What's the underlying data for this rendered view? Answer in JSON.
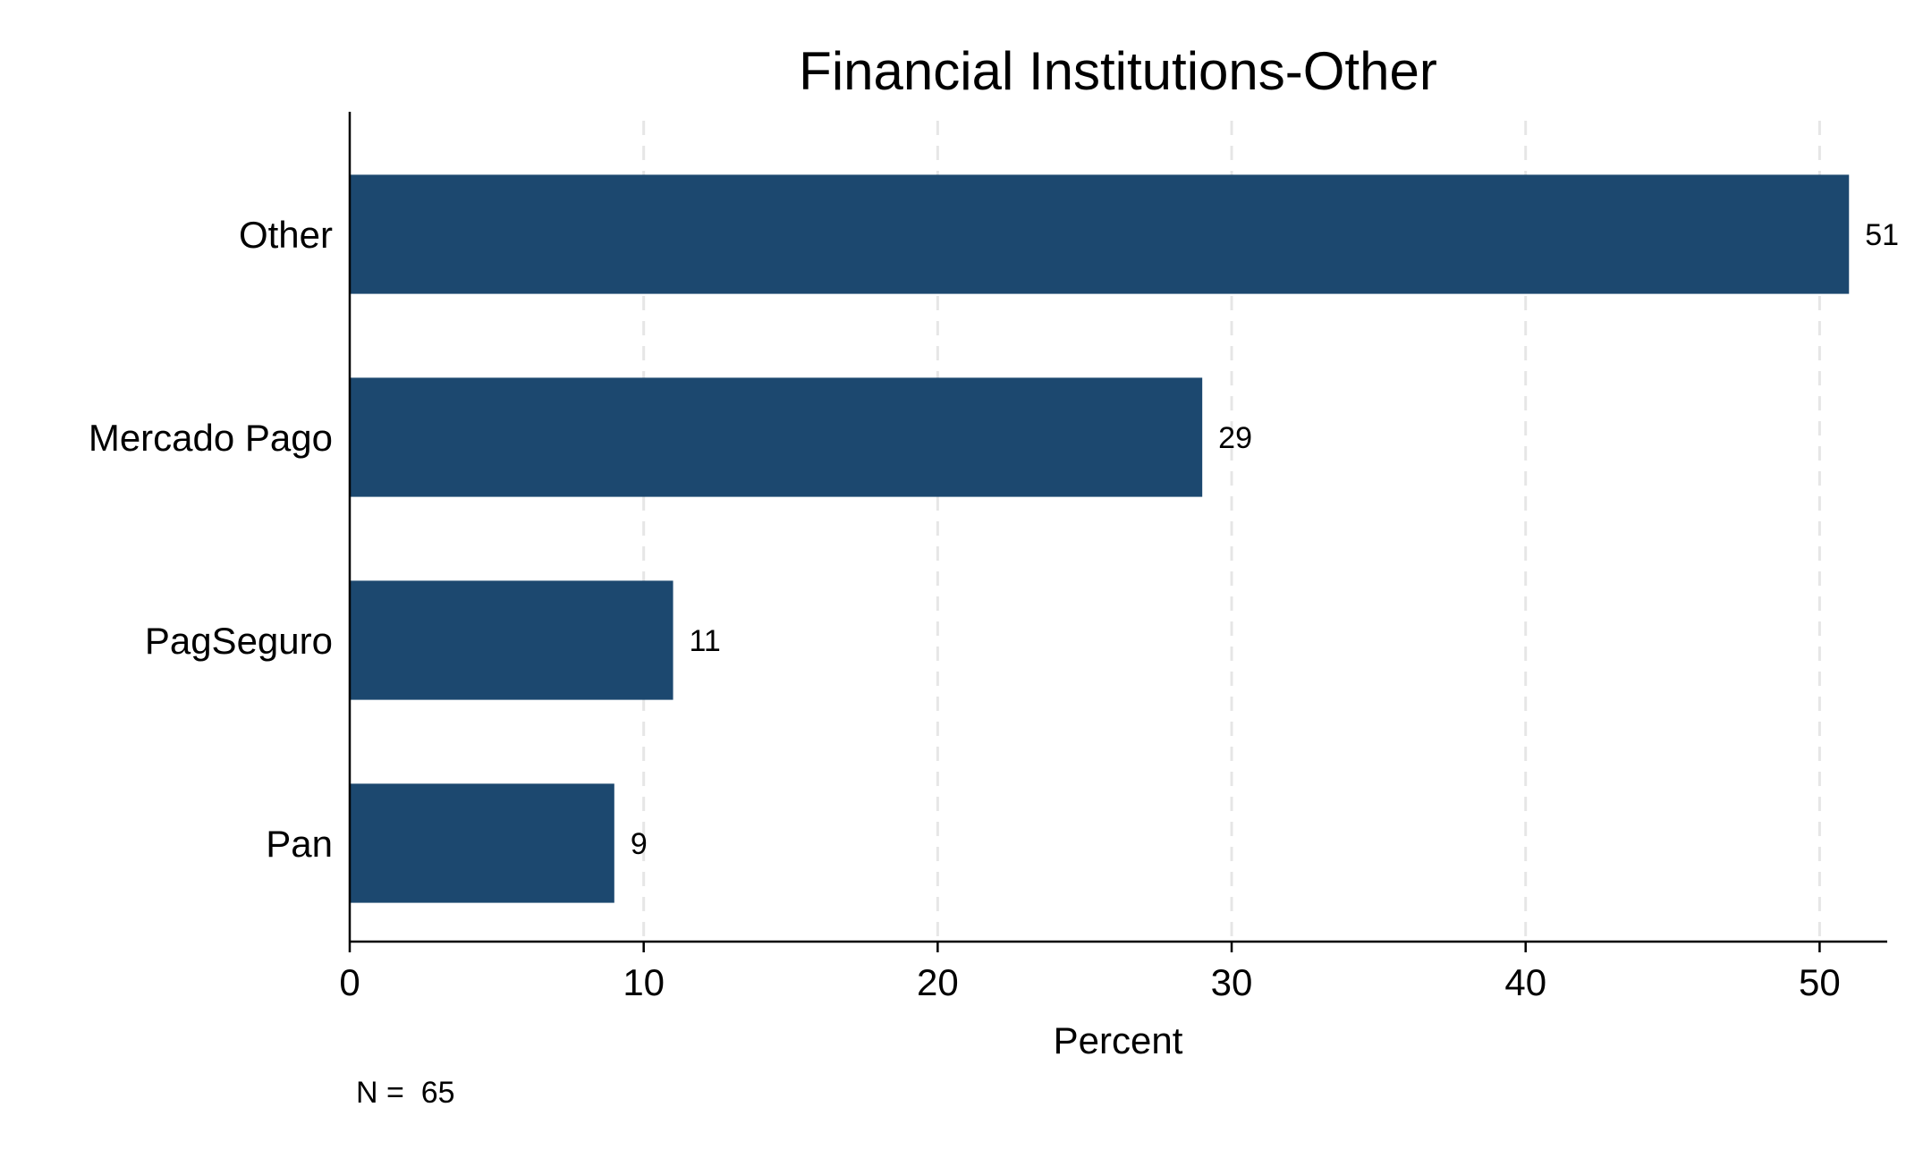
{
  "chart_data": {
    "type": "bar",
    "orientation": "horizontal",
    "title": "Financial Institutions-Other",
    "xlabel": "Percent",
    "ylabel": "",
    "categories": [
      "Other",
      "Mercado Pago",
      "PagSeguro",
      "Pan"
    ],
    "values": [
      51,
      29,
      11,
      9
    ],
    "value_labels": [
      "51",
      "29",
      "11",
      "9"
    ],
    "xlim": [
      0,
      52.3
    ],
    "xticks": [
      0,
      10,
      20,
      30,
      40,
      50
    ],
    "xtick_labels": [
      "0",
      "10",
      "20",
      "30",
      "40",
      "50"
    ],
    "grid": "vertical dashed",
    "legend": "none",
    "note": "N =  65",
    "colors": {
      "bar": "#1c486f",
      "grid": "#e6e6e6",
      "axis": "#000000"
    }
  }
}
